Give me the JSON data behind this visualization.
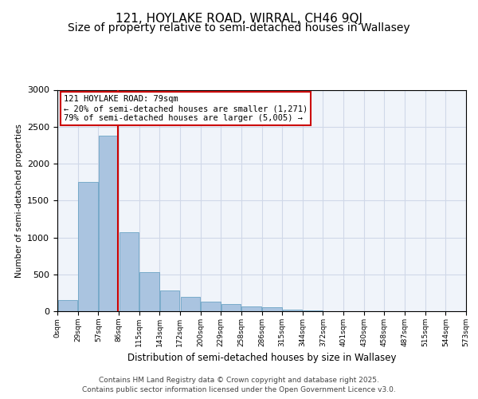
{
  "title1": "121, HOYLAKE ROAD, WIRRAL, CH46 9QJ",
  "title2": "Size of property relative to semi-detached houses in Wallasey",
  "xlabel": "Distribution of semi-detached houses by size in Wallasey",
  "ylabel": "Number of semi-detached properties",
  "annotation_line1": "121 HOYLAKE ROAD: 79sqm",
  "annotation_line2": "← 20% of semi-detached houses are smaller (1,271)",
  "annotation_line3": "79% of semi-detached houses are larger (5,005) →",
  "footer1": "Contains HM Land Registry data © Crown copyright and database right 2025.",
  "footer2": "Contains public sector information licensed under the Open Government Licence v3.0.",
  "bar_values": [
    150,
    1750,
    2380,
    1070,
    530,
    280,
    190,
    130,
    100,
    60,
    50,
    20,
    10,
    5,
    3,
    2,
    1,
    1,
    0,
    0
  ],
  "tick_labels": [
    "0sqm",
    "29sqm",
    "57sqm",
    "86sqm",
    "115sqm",
    "143sqm",
    "172sqm",
    "200sqm",
    "229sqm",
    "258sqm",
    "286sqm",
    "315sqm",
    "344sqm",
    "372sqm",
    "401sqm",
    "430sqm",
    "458sqm",
    "487sqm",
    "515sqm",
    "544sqm",
    "573sqm"
  ],
  "bar_color": "#aac4e0",
  "bar_edge_color": "#5a9abe",
  "vline_position": 2.47,
  "vline_color": "#cc0000",
  "annotation_box_edgecolor": "#cc0000",
  "ylim": [
    0,
    3000
  ],
  "yticks": [
    0,
    500,
    1000,
    1500,
    2000,
    2500,
    3000
  ],
  "grid_color": "#d0d8e8",
  "bg_color": "#f0f4fa",
  "title_fontsize": 11,
  "subtitle_fontsize": 10
}
